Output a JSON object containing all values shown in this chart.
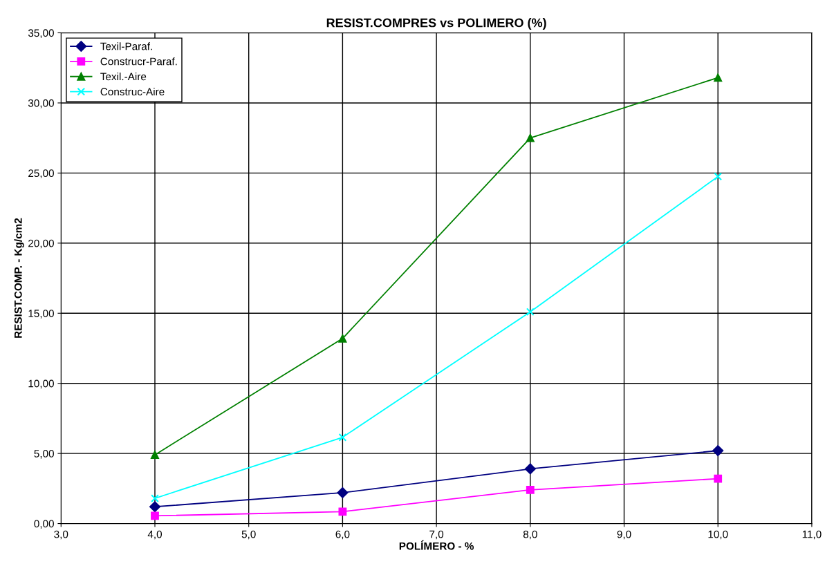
{
  "chart_data": {
    "type": "line",
    "title": "RESIST.COMPRES vs POLIMERO (%)",
    "xlabel": "POLÍMERO - %",
    "ylabel": "RESIST.COMP. - Kg/cm2",
    "x": [
      4,
      6,
      8,
      10
    ],
    "series": [
      {
        "name": "Texil-Paraf.",
        "color": "#000080",
        "marker": "diamond",
        "values": [
          1.2,
          2.2,
          3.9,
          5.2
        ]
      },
      {
        "name": "Construcr-Paraf.",
        "color": "#ff00ff",
        "marker": "square",
        "values": [
          0.55,
          0.85,
          2.4,
          3.2
        ]
      },
      {
        "name": "Texil.-Aire",
        "color": "#008000",
        "marker": "triangle",
        "values": [
          4.9,
          13.2,
          27.5,
          31.8
        ]
      },
      {
        "name": "Construc-Aire",
        "color": "#00ffff",
        "marker": "cross",
        "values": [
          1.8,
          6.15,
          15.1,
          24.75
        ]
      }
    ],
    "xlim": [
      3,
      11
    ],
    "xticks": [
      {
        "value": 3,
        "label": "3,0"
      },
      {
        "value": 4,
        "label": "4,0"
      },
      {
        "value": 5,
        "label": "5,0"
      },
      {
        "value": 6,
        "label": "6,0"
      },
      {
        "value": 7,
        "label": "7,0"
      },
      {
        "value": 8,
        "label": "8,0"
      },
      {
        "value": 9,
        "label": "9,0"
      },
      {
        "value": 10,
        "label": "10,0"
      },
      {
        "value": 11,
        "label": "11,0"
      }
    ],
    "ylim": [
      0,
      35
    ],
    "yticks": [
      {
        "value": 0,
        "label": "0,00"
      },
      {
        "value": 5,
        "label": "5,00"
      },
      {
        "value": 10,
        "label": "10,00"
      },
      {
        "value": 15,
        "label": "15,00"
      },
      {
        "value": 20,
        "label": "20,00"
      },
      {
        "value": 25,
        "label": "25,00"
      },
      {
        "value": 30,
        "label": "30,00"
      },
      {
        "value": 35,
        "label": "35,00"
      }
    ],
    "grid": true,
    "legend": "top left",
    "line_style": "solid"
  }
}
